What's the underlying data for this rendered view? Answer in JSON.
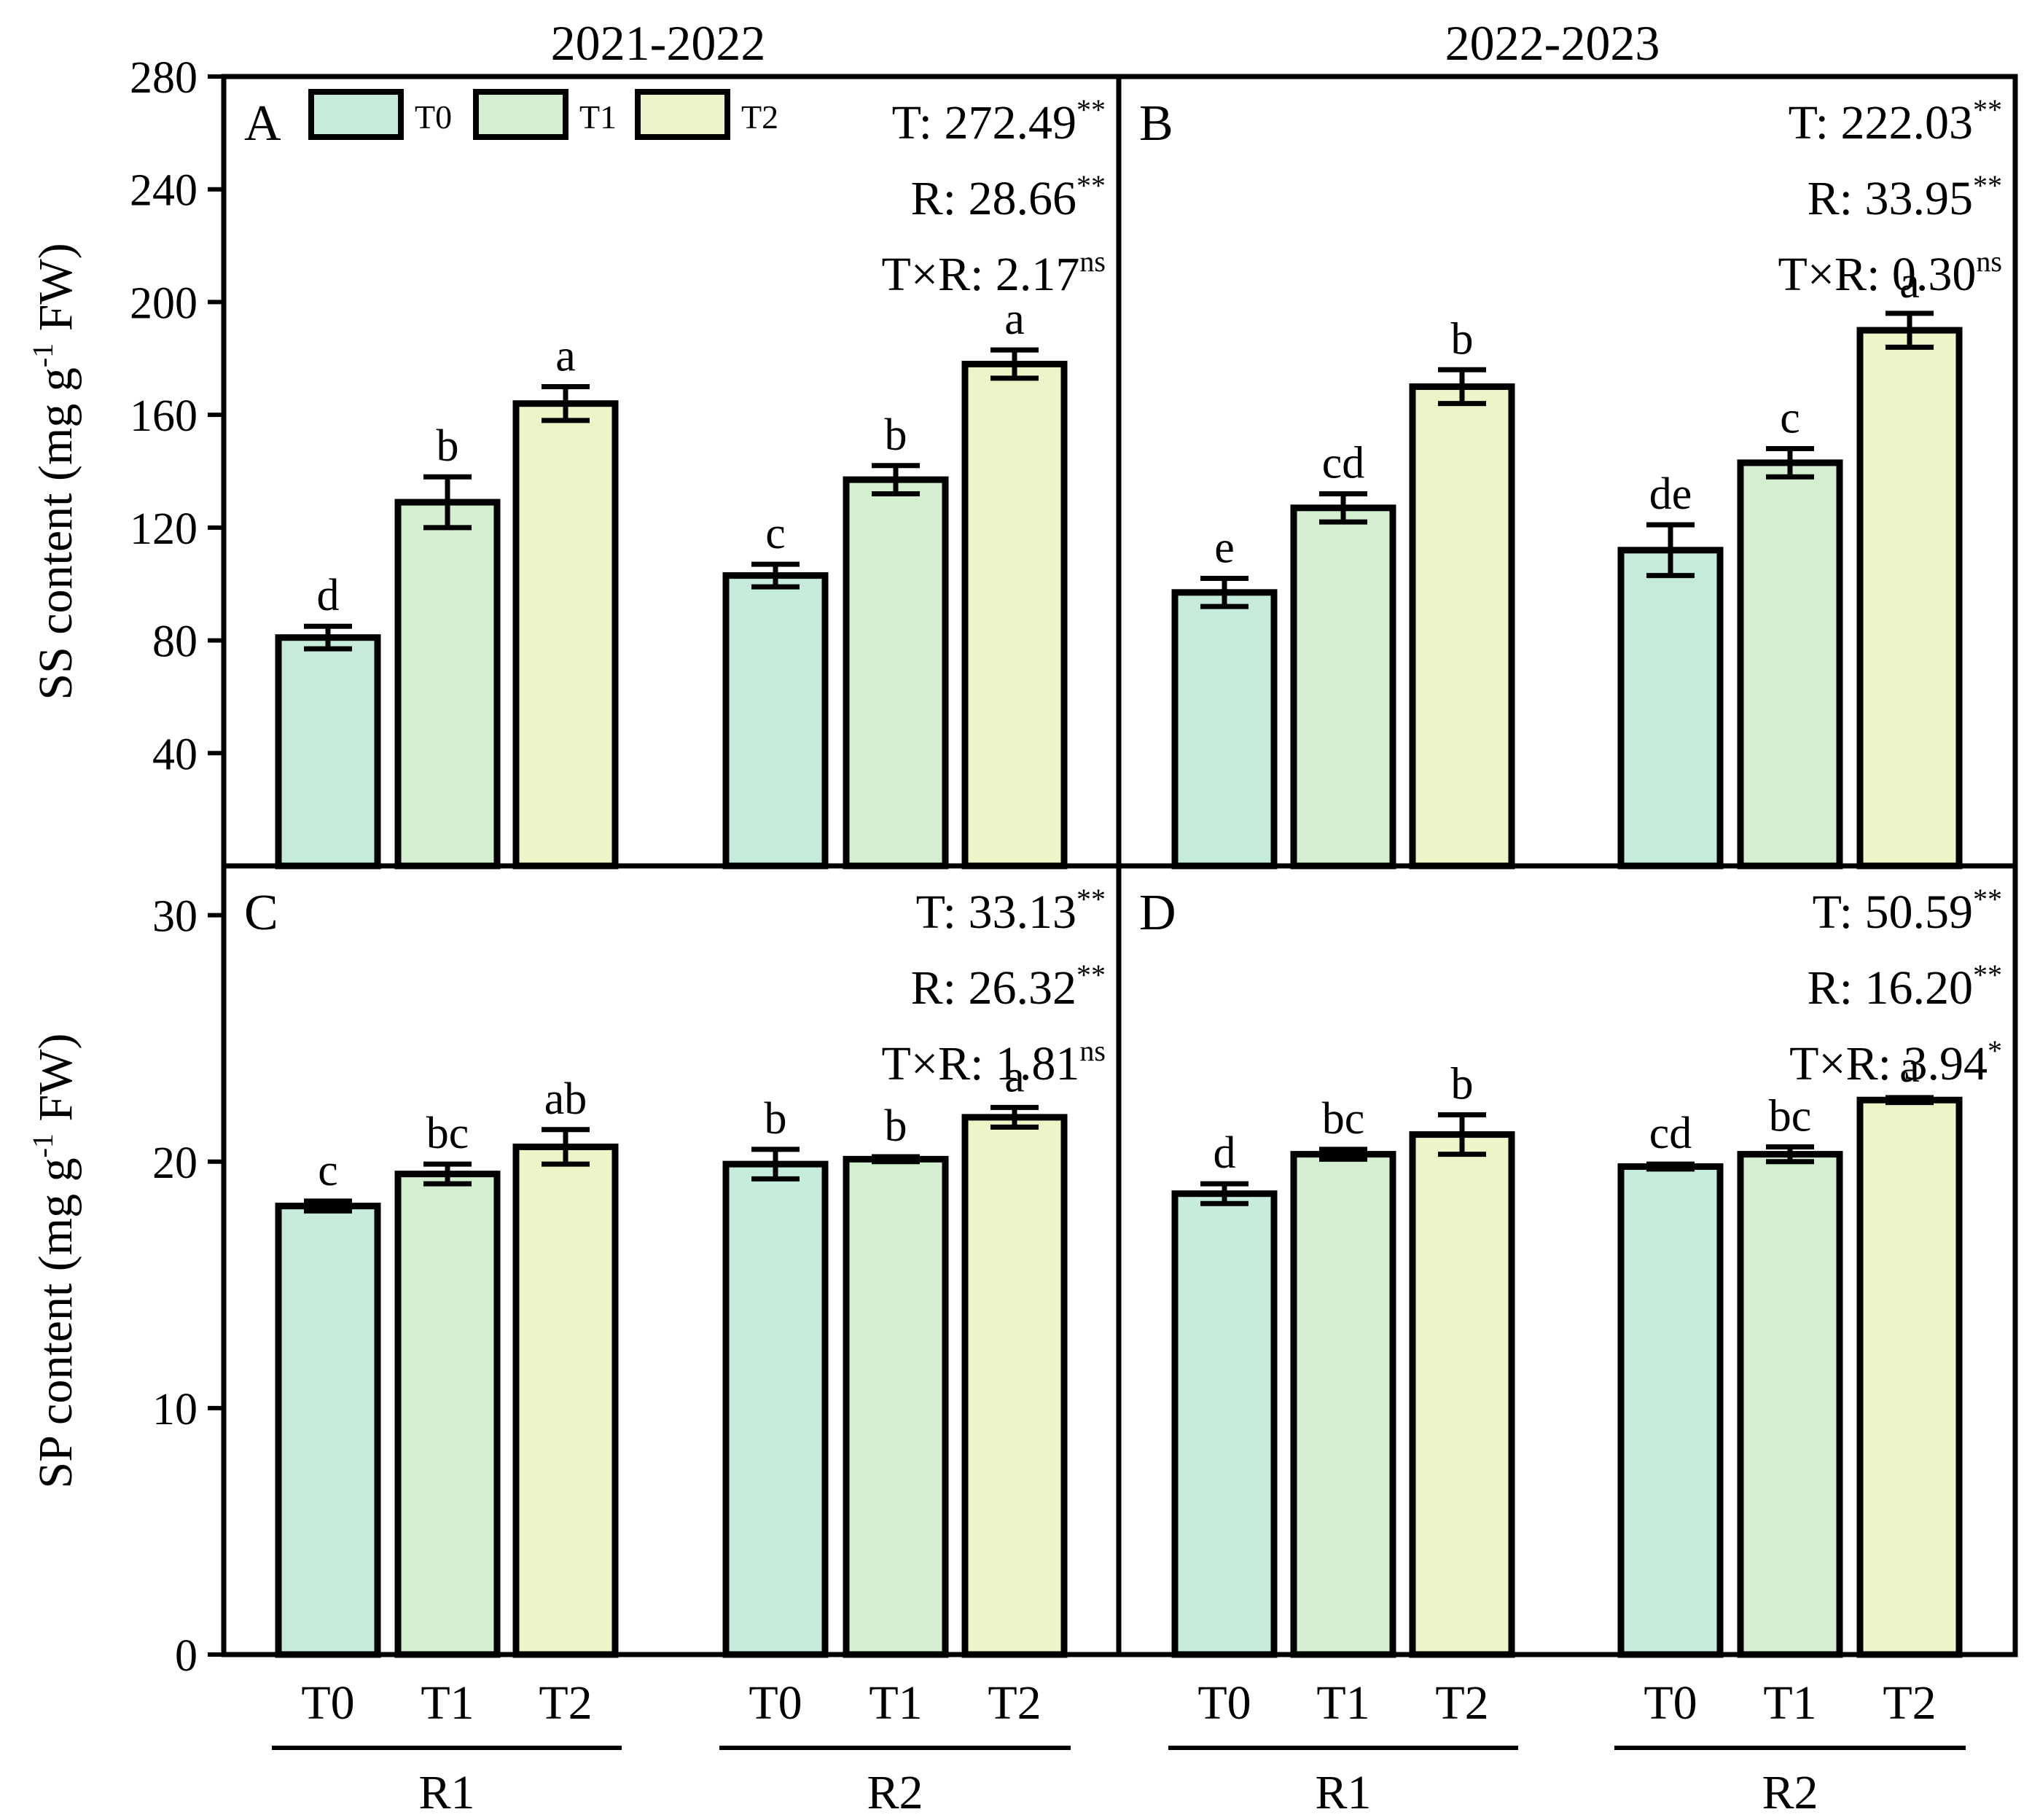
{
  "colors": {
    "T0": "#c5ecdb",
    "T1": "#d4eed0",
    "T2": "#ecf5c7",
    "stroke": "#000000"
  },
  "column_titles": [
    "2021-2022",
    "2022-2023"
  ],
  "legend": [
    "T0",
    "T1",
    "T2"
  ],
  "treatments": [
    "T0",
    "T1",
    "T2"
  ],
  "groups": [
    "R1",
    "R2"
  ],
  "chart_data": [
    {
      "id": "A",
      "panel": "A",
      "type": "bar",
      "title": "2021-2022",
      "ylabel": "SS content (mg g-1 FW)",
      "ylim": [
        0,
        280
      ],
      "yticks": [
        40,
        80,
        120,
        160,
        200,
        240,
        280
      ],
      "categories": [
        "T0",
        "T1",
        "T2"
      ],
      "groups": [
        "R1",
        "R2"
      ],
      "series": [
        {
          "name": "R1",
          "values": [
            81,
            129,
            164
          ],
          "errors": [
            4,
            9,
            6
          ],
          "letters": [
            "d",
            "b",
            "a"
          ]
        },
        {
          "name": "R2",
          "values": [
            103,
            137,
            178
          ],
          "errors": [
            4,
            5,
            5
          ],
          "letters": [
            "c",
            "b",
            "a"
          ]
        }
      ],
      "stats": [
        {
          "label": "T: 272.49",
          "sig": "**"
        },
        {
          "label": "R: 28.66",
          "sig": "**"
        },
        {
          "label": "T×R: 2.17",
          "sig": "ns"
        }
      ]
    },
    {
      "id": "B",
      "panel": "B",
      "type": "bar",
      "title": "2022-2023",
      "ylabel": "SS content (mg g-1 FW)",
      "ylim": [
        0,
        280
      ],
      "yticks": [
        40,
        80,
        120,
        160,
        200,
        240,
        280
      ],
      "categories": [
        "T0",
        "T1",
        "T2"
      ],
      "groups": [
        "R1",
        "R2"
      ],
      "series": [
        {
          "name": "R1",
          "values": [
            97,
            127,
            170
          ],
          "errors": [
            5,
            5,
            6
          ],
          "letters": [
            "e",
            "cd",
            "b"
          ]
        },
        {
          "name": "R2",
          "values": [
            112,
            143,
            190
          ],
          "errors": [
            9,
            5,
            6
          ],
          "letters": [
            "de",
            "c",
            "a"
          ]
        }
      ],
      "stats": [
        {
          "label": "T: 222.03",
          "sig": "**"
        },
        {
          "label": "R: 33.95",
          "sig": "**"
        },
        {
          "label": "T×R: 0.30",
          "sig": "ns"
        }
      ]
    },
    {
      "id": "C",
      "panel": "C",
      "type": "bar",
      "title": "2021-2022",
      "ylabel": "SP content (mg g-1 FW)",
      "ylim": [
        0,
        32
      ],
      "yticks": [
        0,
        10,
        20,
        30
      ],
      "categories": [
        "T0",
        "T1",
        "T2"
      ],
      "groups": [
        "R1",
        "R2"
      ],
      "series": [
        {
          "name": "R1",
          "values": [
            18.2,
            19.5,
            20.6
          ],
          "errors": [
            0.2,
            0.4,
            0.7
          ],
          "letters": [
            "c",
            "bc",
            "ab"
          ]
        },
        {
          "name": "R2",
          "values": [
            19.9,
            20.1,
            21.8
          ],
          "errors": [
            0.6,
            0.1,
            0.4
          ],
          "letters": [
            "b",
            "b",
            "a"
          ]
        }
      ],
      "stats": [
        {
          "label": "T: 33.13",
          "sig": "**"
        },
        {
          "label": "R: 26.32",
          "sig": "**"
        },
        {
          "label": "T×R: 1.81",
          "sig": "ns"
        }
      ]
    },
    {
      "id": "D",
      "panel": "D",
      "type": "bar",
      "title": "2022-2023",
      "ylabel": "SP content (mg g-1 FW)",
      "ylim": [
        0,
        32
      ],
      "yticks": [
        0,
        10,
        20,
        30
      ],
      "categories": [
        "T0",
        "T1",
        "T2"
      ],
      "groups": [
        "R1",
        "R2"
      ],
      "series": [
        {
          "name": "R1",
          "values": [
            18.7,
            20.3,
            21.1
          ],
          "errors": [
            0.4,
            0.2,
            0.8
          ],
          "letters": [
            "d",
            "bc",
            "b"
          ]
        },
        {
          "name": "R2",
          "values": [
            19.8,
            20.3,
            22.5
          ],
          "errors": [
            0.1,
            0.3,
            0.1
          ],
          "letters": [
            "cd",
            "bc",
            "a"
          ]
        }
      ],
      "stats": [
        {
          "label": "T: 50.59",
          "sig": "**"
        },
        {
          "label": "R: 16.20",
          "sig": "**"
        },
        {
          "label": "T×R: 3.94",
          "sig": "*"
        }
      ]
    }
  ]
}
